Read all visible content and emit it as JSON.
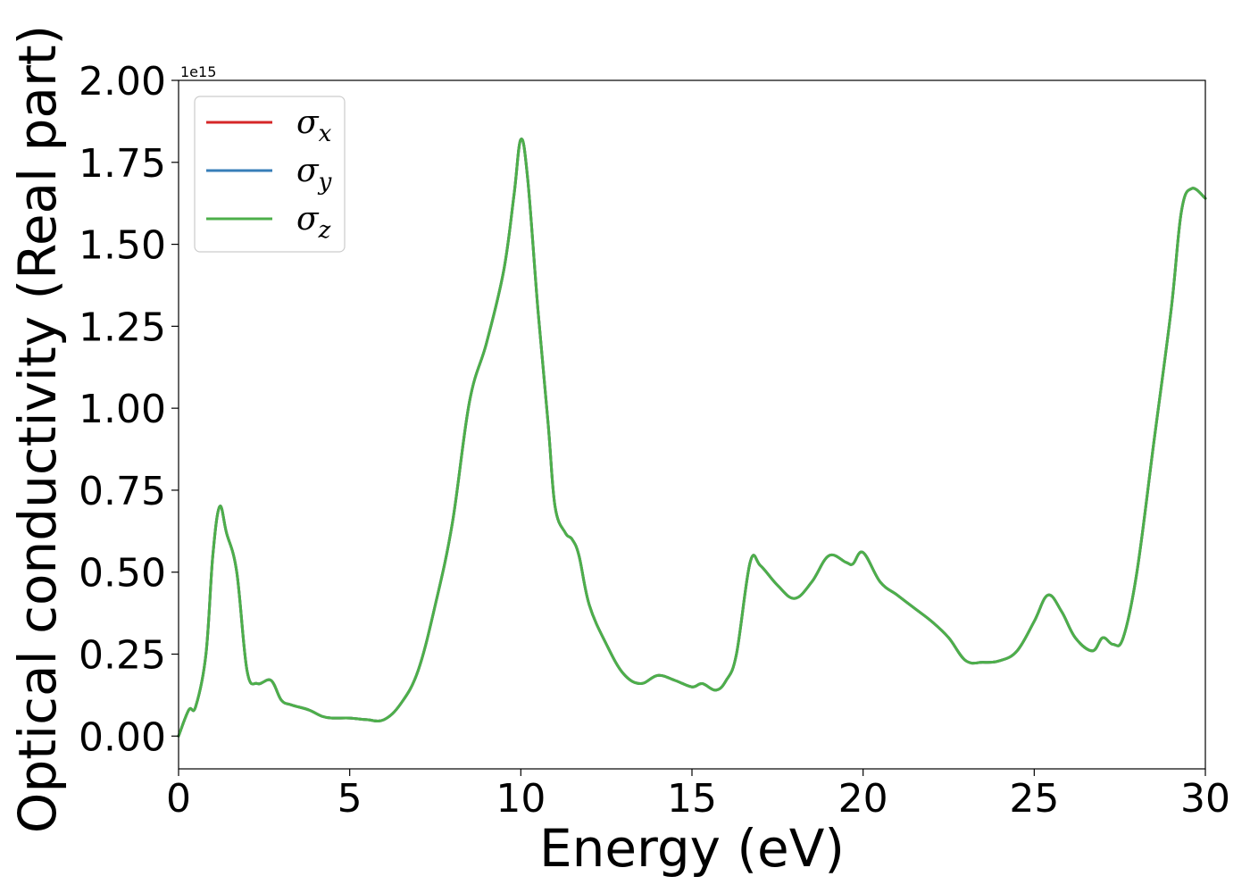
{
  "chart_data": {
    "type": "line",
    "title": "",
    "xlabel": "Energy (eV)",
    "ylabel": "Optical conductivity (Real part)",
    "y_offset_text": "1e15",
    "xlim": [
      0,
      30
    ],
    "ylim": [
      -0.1,
      2.0
    ],
    "x_ticks": [
      0,
      5,
      10,
      15,
      20,
      25,
      30
    ],
    "x_tick_labels": [
      "0",
      "5",
      "10",
      "15",
      "20",
      "25",
      "30"
    ],
    "y_ticks": [
      0.0,
      0.25,
      0.5,
      0.75,
      1.0,
      1.25,
      1.5,
      1.75,
      2.0
    ],
    "y_tick_labels": [
      "0.00",
      "0.25",
      "0.50",
      "0.75",
      "1.00",
      "1.25",
      "1.50",
      "1.75",
      "2.00"
    ],
    "grid": false,
    "legend_position": "top-left",
    "x": [
      0,
      0.3,
      0.5,
      0.8,
      1.0,
      1.2,
      1.4,
      1.7,
      2.0,
      2.3,
      2.7,
      3.0,
      3.3,
      3.8,
      4.2,
      4.5,
      5.0,
      5.5,
      6.0,
      6.5,
      7.0,
      7.5,
      8.0,
      8.5,
      9.0,
      9.5,
      9.8,
      10.0,
      10.2,
      10.5,
      10.8,
      11.0,
      11.3,
      11.5,
      11.7,
      12.0,
      12.5,
      13.0,
      13.5,
      14.0,
      14.5,
      15.0,
      15.3,
      15.7,
      16.0,
      16.3,
      16.7,
      17.0,
      17.5,
      18.0,
      18.5,
      19.0,
      19.5,
      19.7,
      20.0,
      20.5,
      21.0,
      21.5,
      22.0,
      22.5,
      23.0,
      23.5,
      24.0,
      24.5,
      25.0,
      25.4,
      25.8,
      26.2,
      26.7,
      27.0,
      27.3,
      27.6,
      28.0,
      28.5,
      29.0,
      29.3,
      29.6,
      30.0
    ],
    "series": [
      {
        "name": "σx",
        "label": "σ",
        "subscript": "x",
        "color": "#d62728",
        "values": [
          0.0,
          0.08,
          0.09,
          0.25,
          0.55,
          0.7,
          0.62,
          0.5,
          0.2,
          0.16,
          0.17,
          0.11,
          0.095,
          0.08,
          0.06,
          0.055,
          0.055,
          0.05,
          0.05,
          0.1,
          0.2,
          0.4,
          0.65,
          1.02,
          1.2,
          1.42,
          1.65,
          1.82,
          1.7,
          1.3,
          0.95,
          0.7,
          0.62,
          0.6,
          0.55,
          0.4,
          0.28,
          0.19,
          0.16,
          0.185,
          0.17,
          0.15,
          0.16,
          0.14,
          0.17,
          0.25,
          0.53,
          0.52,
          0.46,
          0.42,
          0.47,
          0.55,
          0.53,
          0.525,
          0.56,
          0.47,
          0.43,
          0.39,
          0.35,
          0.3,
          0.23,
          0.225,
          0.23,
          0.26,
          0.35,
          0.43,
          0.38,
          0.3,
          0.26,
          0.3,
          0.28,
          0.3,
          0.5,
          0.9,
          1.3,
          1.6,
          1.67,
          1.64
        ]
      },
      {
        "name": "σy",
        "label": "σ",
        "subscript": "y",
        "color": "#377eb8",
        "values": [
          0.0,
          0.08,
          0.09,
          0.25,
          0.55,
          0.7,
          0.62,
          0.5,
          0.2,
          0.16,
          0.17,
          0.11,
          0.095,
          0.08,
          0.06,
          0.055,
          0.055,
          0.05,
          0.05,
          0.1,
          0.2,
          0.4,
          0.65,
          1.02,
          1.2,
          1.42,
          1.65,
          1.82,
          1.7,
          1.3,
          0.95,
          0.7,
          0.62,
          0.6,
          0.55,
          0.4,
          0.28,
          0.19,
          0.16,
          0.185,
          0.17,
          0.15,
          0.16,
          0.14,
          0.17,
          0.25,
          0.53,
          0.52,
          0.46,
          0.42,
          0.47,
          0.55,
          0.53,
          0.525,
          0.56,
          0.47,
          0.43,
          0.39,
          0.35,
          0.3,
          0.23,
          0.225,
          0.23,
          0.26,
          0.35,
          0.43,
          0.38,
          0.3,
          0.26,
          0.3,
          0.28,
          0.3,
          0.5,
          0.9,
          1.3,
          1.6,
          1.67,
          1.64
        ]
      },
      {
        "name": "σz",
        "label": "σ",
        "subscript": "z",
        "color": "#4daf4a",
        "values": [
          0.0,
          0.08,
          0.09,
          0.25,
          0.55,
          0.7,
          0.62,
          0.5,
          0.2,
          0.16,
          0.17,
          0.11,
          0.095,
          0.08,
          0.06,
          0.055,
          0.055,
          0.05,
          0.05,
          0.1,
          0.2,
          0.4,
          0.65,
          1.02,
          1.2,
          1.42,
          1.65,
          1.82,
          1.7,
          1.3,
          0.95,
          0.7,
          0.62,
          0.6,
          0.55,
          0.4,
          0.28,
          0.19,
          0.16,
          0.185,
          0.17,
          0.15,
          0.16,
          0.14,
          0.17,
          0.25,
          0.53,
          0.52,
          0.46,
          0.42,
          0.47,
          0.55,
          0.53,
          0.525,
          0.56,
          0.47,
          0.43,
          0.39,
          0.35,
          0.3,
          0.23,
          0.225,
          0.23,
          0.26,
          0.35,
          0.43,
          0.38,
          0.3,
          0.26,
          0.3,
          0.28,
          0.3,
          0.5,
          0.9,
          1.3,
          1.6,
          1.67,
          1.64
        ]
      }
    ]
  }
}
